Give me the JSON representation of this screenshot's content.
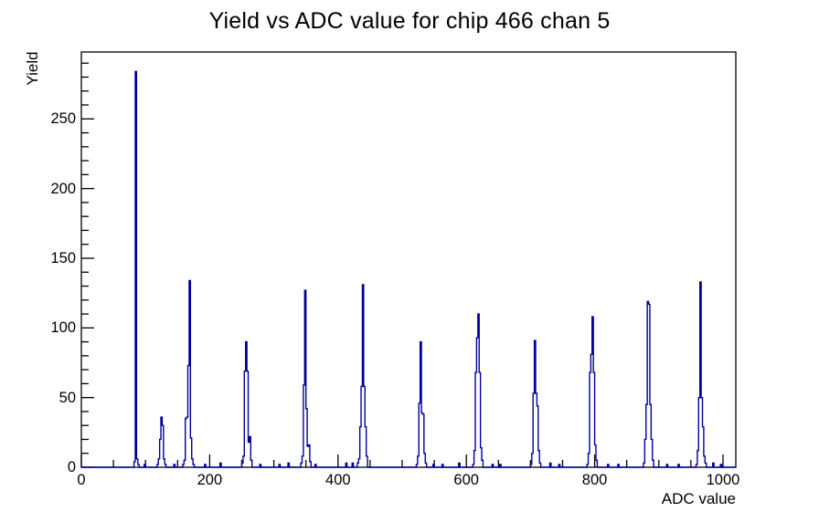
{
  "chart_data": {
    "type": "histogram",
    "title": "Yield vs ADC value for chip 466 chan 5",
    "xlabel": "ADC value",
    "ylabel": "Yield",
    "xlim": [
      0,
      1020
    ],
    "ylim": [
      0,
      298
    ],
    "x_major_ticks": [
      0,
      200,
      400,
      600,
      800,
      1000
    ],
    "x_minor_step": 50,
    "y_major_ticks": [
      0,
      50,
      100,
      150,
      200,
      250
    ],
    "y_minor_step": 10,
    "grid": false,
    "legend": "none",
    "bin_width": 2,
    "line_color": "#000099",
    "frame_color": "#000000",
    "background_color": "#ffffff",
    "peaks": [
      {
        "adc": 85,
        "yield": 284,
        "bins": [
          [
            82,
            4
          ],
          [
            84,
            284
          ],
          [
            86,
            6
          ],
          [
            88,
            2
          ]
        ]
      },
      {
        "adc": 125,
        "yield": 36,
        "bins": [
          [
            118,
            2
          ],
          [
            120,
            6
          ],
          [
            122,
            20
          ],
          [
            124,
            36
          ],
          [
            126,
            30
          ],
          [
            128,
            6
          ],
          [
            130,
            2
          ]
        ]
      },
      {
        "adc": 169,
        "yield": 134,
        "bins": [
          [
            158,
            2
          ],
          [
            160,
            5
          ],
          [
            162,
            35
          ],
          [
            164,
            36
          ],
          [
            166,
            73
          ],
          [
            168,
            134
          ],
          [
            170,
            21
          ],
          [
            172,
            6
          ],
          [
            174,
            2
          ]
        ]
      },
      {
        "adc": 257,
        "yield": 90,
        "bins": [
          [
            250,
            3
          ],
          [
            252,
            8
          ],
          [
            254,
            69
          ],
          [
            256,
            90
          ],
          [
            258,
            69
          ],
          [
            260,
            18
          ],
          [
            262,
            22
          ],
          [
            264,
            5
          ]
        ]
      },
      {
        "adc": 349,
        "yield": 127,
        "bins": [
          [
            342,
            3
          ],
          [
            344,
            8
          ],
          [
            346,
            59
          ],
          [
            348,
            127
          ],
          [
            350,
            42
          ],
          [
            352,
            15
          ],
          [
            354,
            16
          ],
          [
            356,
            4
          ]
        ]
      },
      {
        "adc": 439,
        "yield": 131,
        "bins": [
          [
            430,
            3
          ],
          [
            432,
            6
          ],
          [
            434,
            29
          ],
          [
            436,
            58
          ],
          [
            438,
            131
          ],
          [
            440,
            58
          ],
          [
            442,
            29
          ],
          [
            444,
            8
          ]
        ]
      },
      {
        "adc": 529,
        "yield": 90,
        "bins": [
          [
            522,
            2
          ],
          [
            524,
            8
          ],
          [
            526,
            46
          ],
          [
            528,
            90
          ],
          [
            530,
            39
          ],
          [
            532,
            38
          ],
          [
            534,
            10
          ],
          [
            536,
            3
          ]
        ]
      },
      {
        "adc": 619,
        "yield": 110,
        "bins": [
          [
            610,
            2
          ],
          [
            612,
            12
          ],
          [
            614,
            68
          ],
          [
            616,
            93
          ],
          [
            618,
            110
          ],
          [
            620,
            68
          ],
          [
            622,
            14
          ],
          [
            624,
            5
          ]
        ]
      },
      {
        "adc": 707,
        "yield": 91,
        "bins": [
          [
            700,
            2
          ],
          [
            702,
            10
          ],
          [
            704,
            53
          ],
          [
            706,
            91
          ],
          [
            708,
            53
          ],
          [
            710,
            44
          ],
          [
            712,
            12
          ],
          [
            714,
            3
          ]
        ]
      },
      {
        "adc": 796,
        "yield": 108,
        "bins": [
          [
            788,
            2
          ],
          [
            790,
            10
          ],
          [
            792,
            68
          ],
          [
            794,
            81
          ],
          [
            796,
            108
          ],
          [
            798,
            68
          ],
          [
            800,
            16
          ],
          [
            802,
            5
          ]
        ]
      },
      {
        "adc": 883,
        "yield": 119,
        "bins": [
          [
            876,
            3
          ],
          [
            878,
            20
          ],
          [
            880,
            45
          ],
          [
            882,
            119
          ],
          [
            884,
            117
          ],
          [
            886,
            45
          ],
          [
            888,
            20
          ],
          [
            890,
            5
          ]
        ]
      },
      {
        "adc": 965,
        "yield": 133,
        "bins": [
          [
            958,
            2
          ],
          [
            960,
            12
          ],
          [
            962,
            50
          ],
          [
            964,
            133
          ],
          [
            966,
            50
          ],
          [
            968,
            29
          ],
          [
            970,
            8
          ],
          [
            972,
            3
          ]
        ]
      }
    ],
    "noise_bins": [
      [
        98,
        2
      ],
      [
        144,
        2
      ],
      [
        192,
        2
      ],
      [
        216,
        3
      ],
      [
        278,
        2
      ],
      [
        308,
        2
      ],
      [
        322,
        3
      ],
      [
        364,
        2
      ],
      [
        412,
        3
      ],
      [
        422,
        3
      ],
      [
        548,
        2
      ],
      [
        562,
        2
      ],
      [
        588,
        3
      ],
      [
        640,
        2
      ],
      [
        652,
        2
      ],
      [
        730,
        3
      ],
      [
        744,
        2
      ],
      [
        820,
        2
      ],
      [
        836,
        2
      ],
      [
        912,
        2
      ],
      [
        930,
        2
      ],
      [
        984,
        3
      ],
      [
        996,
        2
      ]
    ]
  }
}
